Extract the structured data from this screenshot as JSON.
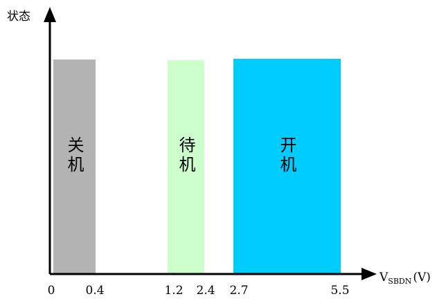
{
  "diagram": {
    "y_axis_label": "状态",
    "x_axis_label_main": "V",
    "x_axis_label_sub": "SBDN",
    "x_axis_label_unit": "(V)",
    "x_ticks": [
      "0",
      "0.4",
      "1.2",
      "2.4",
      "2.7",
      "5.5"
    ],
    "regions": [
      {
        "label": "关机",
        "from": 0,
        "to": 0.4,
        "color": "#b3b3b3"
      },
      {
        "label": "待机",
        "from": 1.2,
        "to": 2.4,
        "color": "#ccffcc"
      },
      {
        "label": "开机",
        "from": 2.7,
        "to": 5.5,
        "color": "#00ccff"
      }
    ],
    "axis_color": "#000000"
  }
}
